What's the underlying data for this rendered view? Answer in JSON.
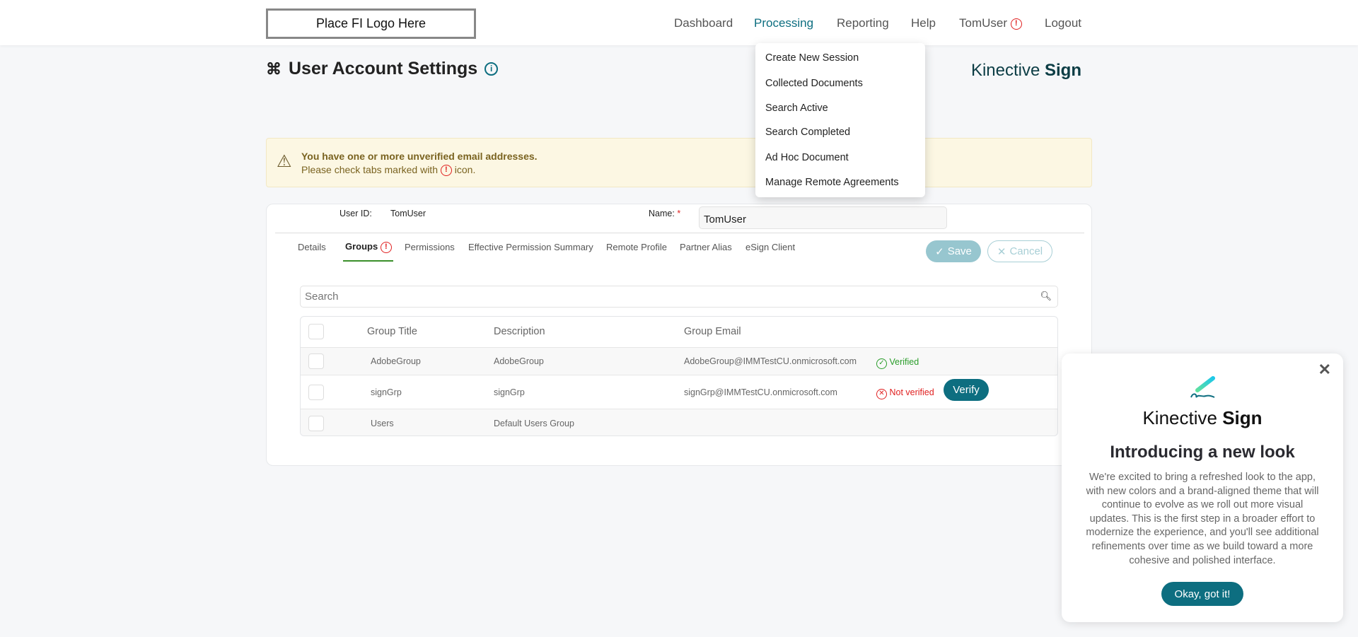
{
  "header": {
    "logo": "Place FI Logo Here",
    "nav": [
      "Dashboard",
      "Processing",
      "Reporting",
      "Help",
      "TomUser",
      "Logout"
    ]
  },
  "dropdown": [
    "Create New Session",
    "Collected Documents",
    "Search Active",
    "Search Completed",
    "Ad Hoc Document",
    "Manage Remote Agreements"
  ],
  "page": {
    "title": "User Account Settings",
    "brand_light": "Kinective",
    "brand_bold": "Sign"
  },
  "alert": {
    "title": "You have one or more unverified email addresses.",
    "line_pre": "Please check tabs marked with",
    "line_post": "icon."
  },
  "form": {
    "user_id_label": "User ID:",
    "user_id_value": "TomUser",
    "name_label": "Name:",
    "required": "*",
    "name_value": "TomUser"
  },
  "tabs": [
    "Details",
    "Groups",
    "Permissions",
    "Effective Permission Summary",
    "Remote Profile",
    "Partner Alias",
    "eSign Client"
  ],
  "actions": {
    "save": "Save",
    "cancel": "Cancel"
  },
  "search": {
    "placeholder": "Search"
  },
  "table": {
    "headers": [
      "Group Title",
      "Description",
      "Group Email"
    ],
    "rows": [
      {
        "title": "AdobeGroup",
        "description": "AdobeGroup",
        "email": "AdobeGroup@IMMTestCU.onmicrosoft.com",
        "status": "Verified"
      },
      {
        "title": "signGrp",
        "description": "signGrp",
        "email": "signGrp@IMMTestCU.onmicrosoft.com",
        "status": "Not verified",
        "action": "Verify"
      },
      {
        "title": "Users",
        "description": "Default Users Group",
        "email": "",
        "status": ""
      }
    ]
  },
  "popup": {
    "brand_light": "Kinective",
    "brand_bold": "Sign",
    "heading": "Introducing a new look",
    "body": "We're excited to bring a refreshed look to the app, with new colors and a brand-aligned theme that will continue to evolve as we roll out more visual updates. This is the first step in a broader effort to modernize the experience, and you'll see additional refinements over time as we build toward a more cohesive and polished interface.",
    "button": "Okay, got it!"
  },
  "colors": {
    "accent": "#0d6e80",
    "error": "#e02020",
    "success": "#2a9d2a",
    "alert_bg": "#fcf7e3"
  }
}
